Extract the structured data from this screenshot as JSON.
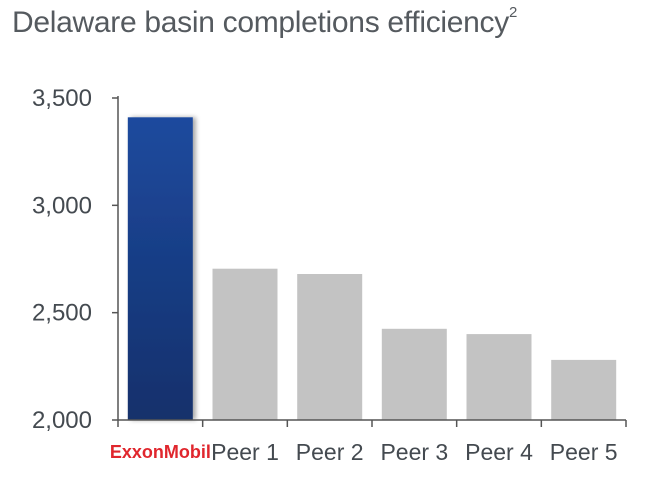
{
  "title": "Delaware basin completions efficiency",
  "title_superscript": "2",
  "colors": {
    "highlight_top": "#1e4a9e",
    "highlight_bottom": "#12306b",
    "peer": "#c3c3c3",
    "axis": "#555555",
    "text": "#444a50",
    "logo_red": "#e0262d"
  },
  "chart_data": {
    "type": "bar",
    "title": "Delaware basin completions efficiency",
    "categories": [
      "ExxonMobil",
      "Peer 1",
      "Peer 2",
      "Peer 3",
      "Peer 4",
      "Peer 5"
    ],
    "values": [
      3410,
      2705,
      2680,
      2425,
      2400,
      2280
    ],
    "highlight_index": 0,
    "ylim": [
      2000,
      3500
    ],
    "yticks": [
      2000,
      2500,
      3000,
      3500
    ],
    "ytick_labels": [
      "2,000",
      "2,500",
      "3,000",
      "3,500"
    ],
    "xlabel": "",
    "ylabel": "",
    "grid": false
  }
}
